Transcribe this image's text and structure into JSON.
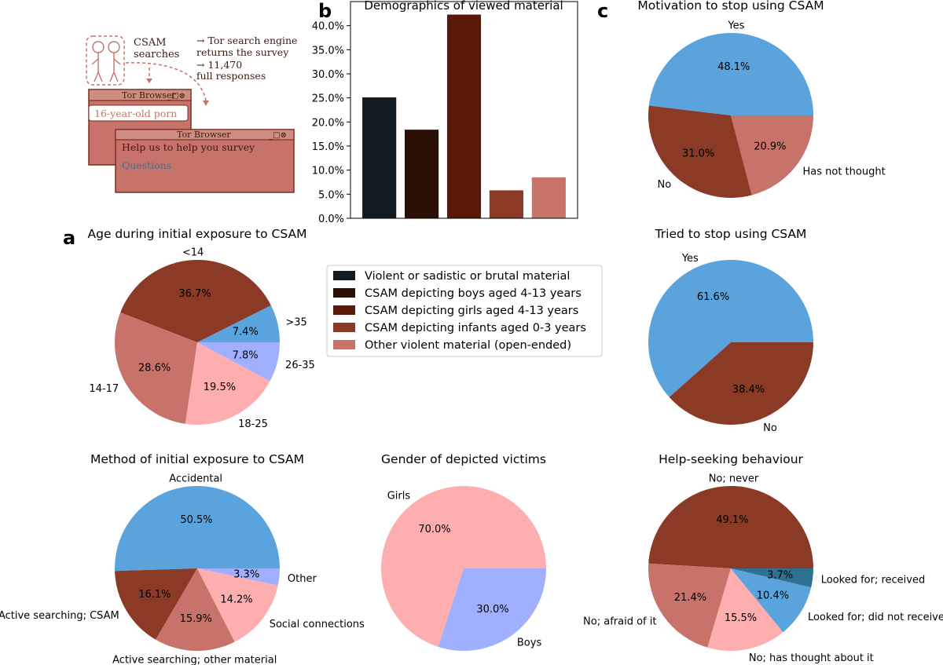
{
  "panel_labels": {
    "a": "a",
    "b": "b",
    "c": "c"
  },
  "illustration": {
    "searches_label_1": "CSAM",
    "searches_label_2": "searches",
    "note_line_1": "→ Tor search engine",
    "note_line_2": "returns the survey",
    "note_line_3": "→ 11,470",
    "note_line_4": "full responses",
    "browser1_title": "Tor Browser",
    "browser1_query": "16-year-old porn",
    "browser2_title": "Tor Browser",
    "browser2_heading": "Help us to help you survey",
    "browser2_link": "Questions",
    "window_controls": "_□⊗",
    "colors": {
      "window": "#c87b6f",
      "titlebar": "#cf8d82",
      "outline": "#7a2e20",
      "link": "#3f6f93"
    }
  },
  "chart_data": [
    {
      "id": "demographics",
      "type": "bar",
      "title": "Demographics of viewed material",
      "xlabel": "",
      "ylabel": "",
      "categories": [
        "Violent or sadistic or brutal material",
        "CSAM depicting boys aged 4-13 years",
        "CSAM depicting girls aged 4-13 years",
        "CSAM depicting infants aged 0-3 years",
        "Other violent material (open-ended)"
      ],
      "values": [
        25.1,
        18.4,
        42.3,
        5.8,
        8.5
      ],
      "colors": [
        "#131a20",
        "#2a0f05",
        "#591808",
        "#8a3a25",
        "#c8736a"
      ],
      "ylim": [
        0,
        45
      ],
      "yticks": [
        0,
        5,
        10,
        15,
        20,
        25,
        30,
        35,
        40
      ],
      "ytick_labels": [
        "0.0%",
        "5.0%",
        "10.0%",
        "15.0%",
        "20.0%",
        "25.0%",
        "30.0%",
        "35.0%",
        "40.0%"
      ],
      "legend": [
        {
          "label": "Violent or sadistic or brutal material",
          "color": "#131a20"
        },
        {
          "label": "CSAM depicting boys aged 4-13 years",
          "color": "#2a0f05"
        },
        {
          "label": "CSAM depicting girls aged 4-13 years",
          "color": "#591808"
        },
        {
          "label": "CSAM depicting infants aged 0-3 years",
          "color": "#8a3a25"
        },
        {
          "label": "Other violent material (open-ended)",
          "color": "#c8736a"
        }
      ]
    },
    {
      "id": "age",
      "type": "pie",
      "title": "Age during initial exposure to CSAM",
      "slices": [
        {
          "label": ">35",
          "value": 7.4,
          "pct": "7.4%",
          "color": "#5ba3dc"
        },
        {
          "label": "<14",
          "value": 36.7,
          "pct": "36.7%",
          "color": "#8a3a25"
        },
        {
          "label": "14-17",
          "value": 28.6,
          "pct": "28.6%",
          "color": "#c8736a"
        },
        {
          "label": "18-25",
          "value": 19.5,
          "pct": "19.5%",
          "color": "#ffaeb0"
        },
        {
          "label": "26-35",
          "value": 7.8,
          "pct": "7.8%",
          "color": "#a0b0ff"
        }
      ]
    },
    {
      "id": "method",
      "type": "pie",
      "title": "Method of initial exposure to CSAM",
      "slices": [
        {
          "label": "Accidental",
          "value": 50.5,
          "pct": "50.5%",
          "color": "#5ba3dc"
        },
        {
          "label": "Active searching; CSAM",
          "value": 16.1,
          "pct": "16.1%",
          "color": "#8a3a25"
        },
        {
          "label": "Active searching; other material",
          "value": 15.9,
          "pct": "15.9%",
          "color": "#c8736a"
        },
        {
          "label": "Social connections",
          "value": 14.2,
          "pct": "14.2%",
          "color": "#ffaeb0"
        },
        {
          "label": "Other",
          "value": 3.3,
          "pct": "3.3%",
          "color": "#a0b0ff"
        }
      ]
    },
    {
      "id": "gender",
      "type": "pie",
      "title": "Gender of depicted victims",
      "slices": [
        {
          "label": "Girls",
          "value": 70.0,
          "pct": "70.0%",
          "color": "#ffaeb0"
        },
        {
          "label": "Boys",
          "value": 30.0,
          "pct": "30.0%",
          "color": "#a0b0ff"
        }
      ]
    },
    {
      "id": "motivation",
      "type": "pie",
      "title": "Motivation to stop using CSAM",
      "slices": [
        {
          "label": "Yes",
          "value": 48.1,
          "pct": "48.1%",
          "color": "#5ba3dc"
        },
        {
          "label": "No",
          "value": 31.0,
          "pct": "31.0%",
          "color": "#8a3a25"
        },
        {
          "label": "Has not thought",
          "value": 20.9,
          "pct": "20.9%",
          "color": "#c8736a"
        }
      ]
    },
    {
      "id": "tried",
      "type": "pie",
      "title": "Tried to stop using CSAM",
      "slices": [
        {
          "label": "Yes",
          "value": 61.6,
          "pct": "61.6%",
          "color": "#5ba3dc"
        },
        {
          "label": "No",
          "value": 38.4,
          "pct": "38.4%",
          "color": "#8a3a25"
        }
      ]
    },
    {
      "id": "help",
      "type": "pie",
      "title": "Help-seeking behaviour",
      "slices": [
        {
          "label": "No; never",
          "value": 49.1,
          "pct": "49.1%",
          "color": "#8a3a25"
        },
        {
          "label": "No; afraid of it",
          "value": 21.4,
          "pct": "21.4%",
          "color": "#c8736a"
        },
        {
          "label": "No; has thought about it",
          "value": 15.5,
          "pct": "15.5%",
          "color": "#ffaeb0"
        },
        {
          "label": "Looked for; did not receive",
          "value": 10.4,
          "pct": "10.4%",
          "color": "#5ba3dc"
        },
        {
          "label": "Looked for; received",
          "value": 3.7,
          "pct": "3.7%",
          "color": "#2f7191"
        }
      ]
    }
  ]
}
